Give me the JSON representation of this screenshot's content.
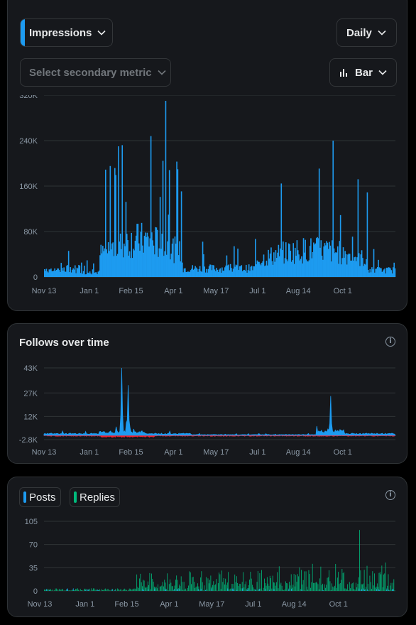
{
  "colors": {
    "accent": "#1d9bf0",
    "negative": "#f4212e",
    "replies": "#00ba7c",
    "grid": "#2f3336",
    "axis_text": "#8b98a5"
  },
  "controls": {
    "primary_metric": "Impressions",
    "secondary_metric_placeholder": "Select secondary metric",
    "interval": "Daily",
    "chart_type": "Bar"
  },
  "follows": {
    "title": "Follows over time"
  },
  "engagement": {
    "legend": [
      {
        "label": "Posts",
        "color": "#1d9bf0"
      },
      {
        "label": "Replies",
        "color": "#00ba7c"
      }
    ]
  },
  "chart_data": [
    {
      "type": "bar",
      "series": [
        {
          "values_note": "daily impressions",
          "name": "Impressions"
        }
      ],
      "x_range": [
        "2022-11-13",
        "2023-11-30"
      ],
      "x_ticks": [
        "Nov 13",
        "Jan 1",
        "Feb 15",
        "Apr 1",
        "May 17",
        "Jul 1",
        "Aug 14",
        "Oct 1"
      ],
      "y_ticks": [
        "0",
        "80K",
        "160K",
        "240K",
        "320K"
      ],
      "ylim": [
        0,
        320000
      ],
      "peaks": [
        {
          "x": "2023-02-01",
          "y": 230000
        },
        {
          "x": "2023-02-05",
          "y": 232000
        },
        {
          "x": "2023-03-08",
          "y": 248000
        },
        {
          "x": "2023-03-24",
          "y": 310000
        },
        {
          "x": "2023-09-21",
          "y": 240000
        },
        {
          "x": "2023-10-18",
          "y": 172000
        }
      ]
    },
    {
      "type": "area",
      "series": [
        {
          "name": "Follows"
        },
        {
          "name": "Unfollows"
        }
      ],
      "x_ticks": [
        "Nov 13",
        "Jan 1",
        "Feb 15",
        "Apr 1",
        "May 17",
        "Jul 1",
        "Aug 14",
        "Oct 1"
      ],
      "y_ticks": [
        "-2.8K",
        "12K",
        "27K",
        "43K"
      ],
      "ylim": [
        -2800,
        43000
      ],
      "peaks": [
        {
          "x": "2023-02-05",
          "y": 43000
        },
        {
          "x": "2023-02-12",
          "y": 32000
        },
        {
          "x": "2023-09-19",
          "y": 25000
        }
      ]
    },
    {
      "type": "bar",
      "series": [
        {
          "name": "Posts"
        },
        {
          "name": "Replies"
        }
      ],
      "x_ticks": [
        "Nov 13",
        "Jan 1",
        "Feb 15",
        "Apr 1",
        "May 17",
        "Jul 1",
        "Aug 14",
        "Oct 1"
      ],
      "y_ticks": [
        "0",
        "35",
        "70",
        "105"
      ],
      "ylim": [
        0,
        105
      ],
      "peaks": [
        {
          "x": "2023-10-20",
          "y": 92
        }
      ]
    }
  ]
}
